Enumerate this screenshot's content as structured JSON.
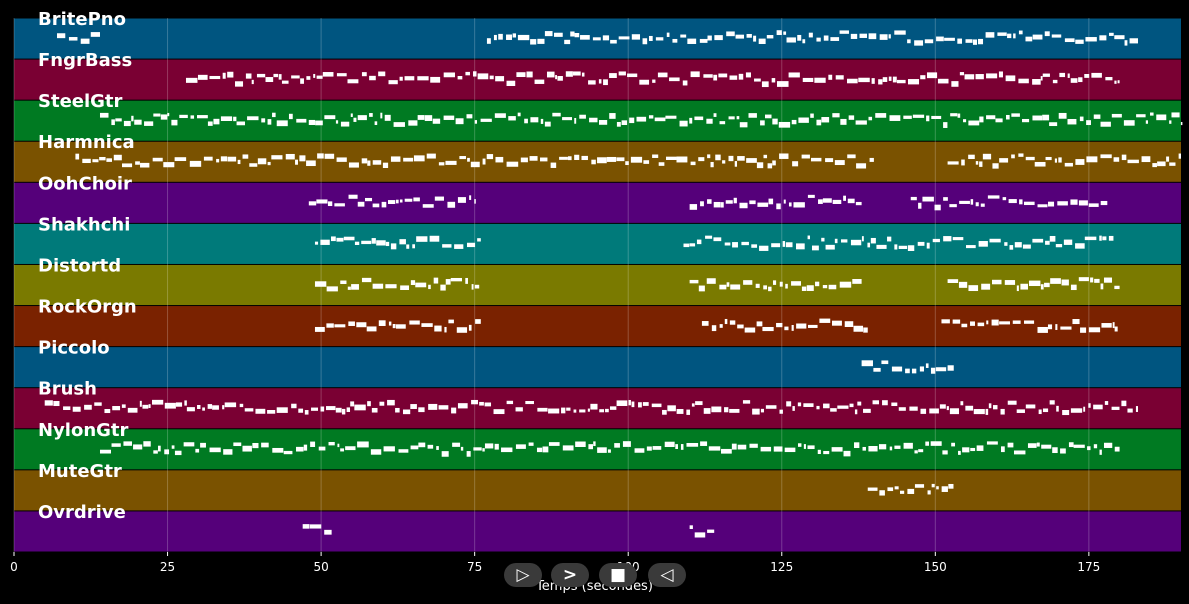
{
  "chart_data": {
    "type": "piano-roll",
    "xlabel": "Temps (secondes)",
    "xlim": [
      0,
      190
    ],
    "xticks": [
      0,
      25,
      50,
      75,
      100,
      125,
      150,
      175
    ],
    "grid": true,
    "tracks": [
      {
        "name": "BritePno",
        "color": "#005580",
        "segments": [
          [
            7,
            14
          ],
          [
            77,
            183
          ]
        ]
      },
      {
        "name": "FngrBass",
        "color": "#7a0033",
        "segments": [
          [
            28,
            180
          ]
        ]
      },
      {
        "name": "SteelGtr",
        "color": "#007a22",
        "segments": [
          [
            14,
            190
          ]
        ]
      },
      {
        "name": "Harmnica",
        "color": "#7a5200",
        "segments": [
          [
            10,
            140
          ],
          [
            152,
            190
          ]
        ]
      },
      {
        "name": "OohChoir",
        "color": "#55007a",
        "segments": [
          [
            48,
            75
          ],
          [
            110,
            138
          ],
          [
            146,
            178
          ]
        ]
      },
      {
        "name": "Shakhchi",
        "color": "#007a7a",
        "segments": [
          [
            49,
            76
          ],
          [
            109,
            179
          ]
        ]
      },
      {
        "name": "Distortd",
        "color": "#7a7a00",
        "segments": [
          [
            49,
            76
          ],
          [
            110,
            138
          ],
          [
            152,
            180
          ]
        ]
      },
      {
        "name": "RockOrgn",
        "color": "#7a2200",
        "segments": [
          [
            49,
            76
          ],
          [
            112,
            139
          ],
          [
            151,
            180
          ]
        ]
      },
      {
        "name": "Piccolo",
        "color": "#005580",
        "segments": [
          [
            138,
            153
          ]
        ]
      },
      {
        "name": "Brush",
        "color": "#7a0033",
        "segments": [
          [
            5,
            183
          ]
        ]
      },
      {
        "name": "NylonGtr",
        "color": "#007a22",
        "segments": [
          [
            14,
            180
          ]
        ]
      },
      {
        "name": "MuteGtr",
        "color": "#7a5200",
        "segments": [
          [
            139,
            153
          ]
        ]
      },
      {
        "name": "Ovrdrive",
        "color": "#55007a",
        "segments": [
          [
            47,
            52
          ],
          [
            110,
            114
          ]
        ]
      }
    ]
  },
  "transport": {
    "buttons": [
      {
        "name": "rewind-button",
        "icon": "skip-start-icon",
        "glyph": "▷"
      },
      {
        "name": "play-button",
        "icon": "play-icon",
        "glyph": ">"
      },
      {
        "name": "stop-button",
        "icon": "stop-icon",
        "glyph": "■"
      },
      {
        "name": "forward-button",
        "icon": "skip-back-icon",
        "glyph": "◁"
      }
    ]
  }
}
